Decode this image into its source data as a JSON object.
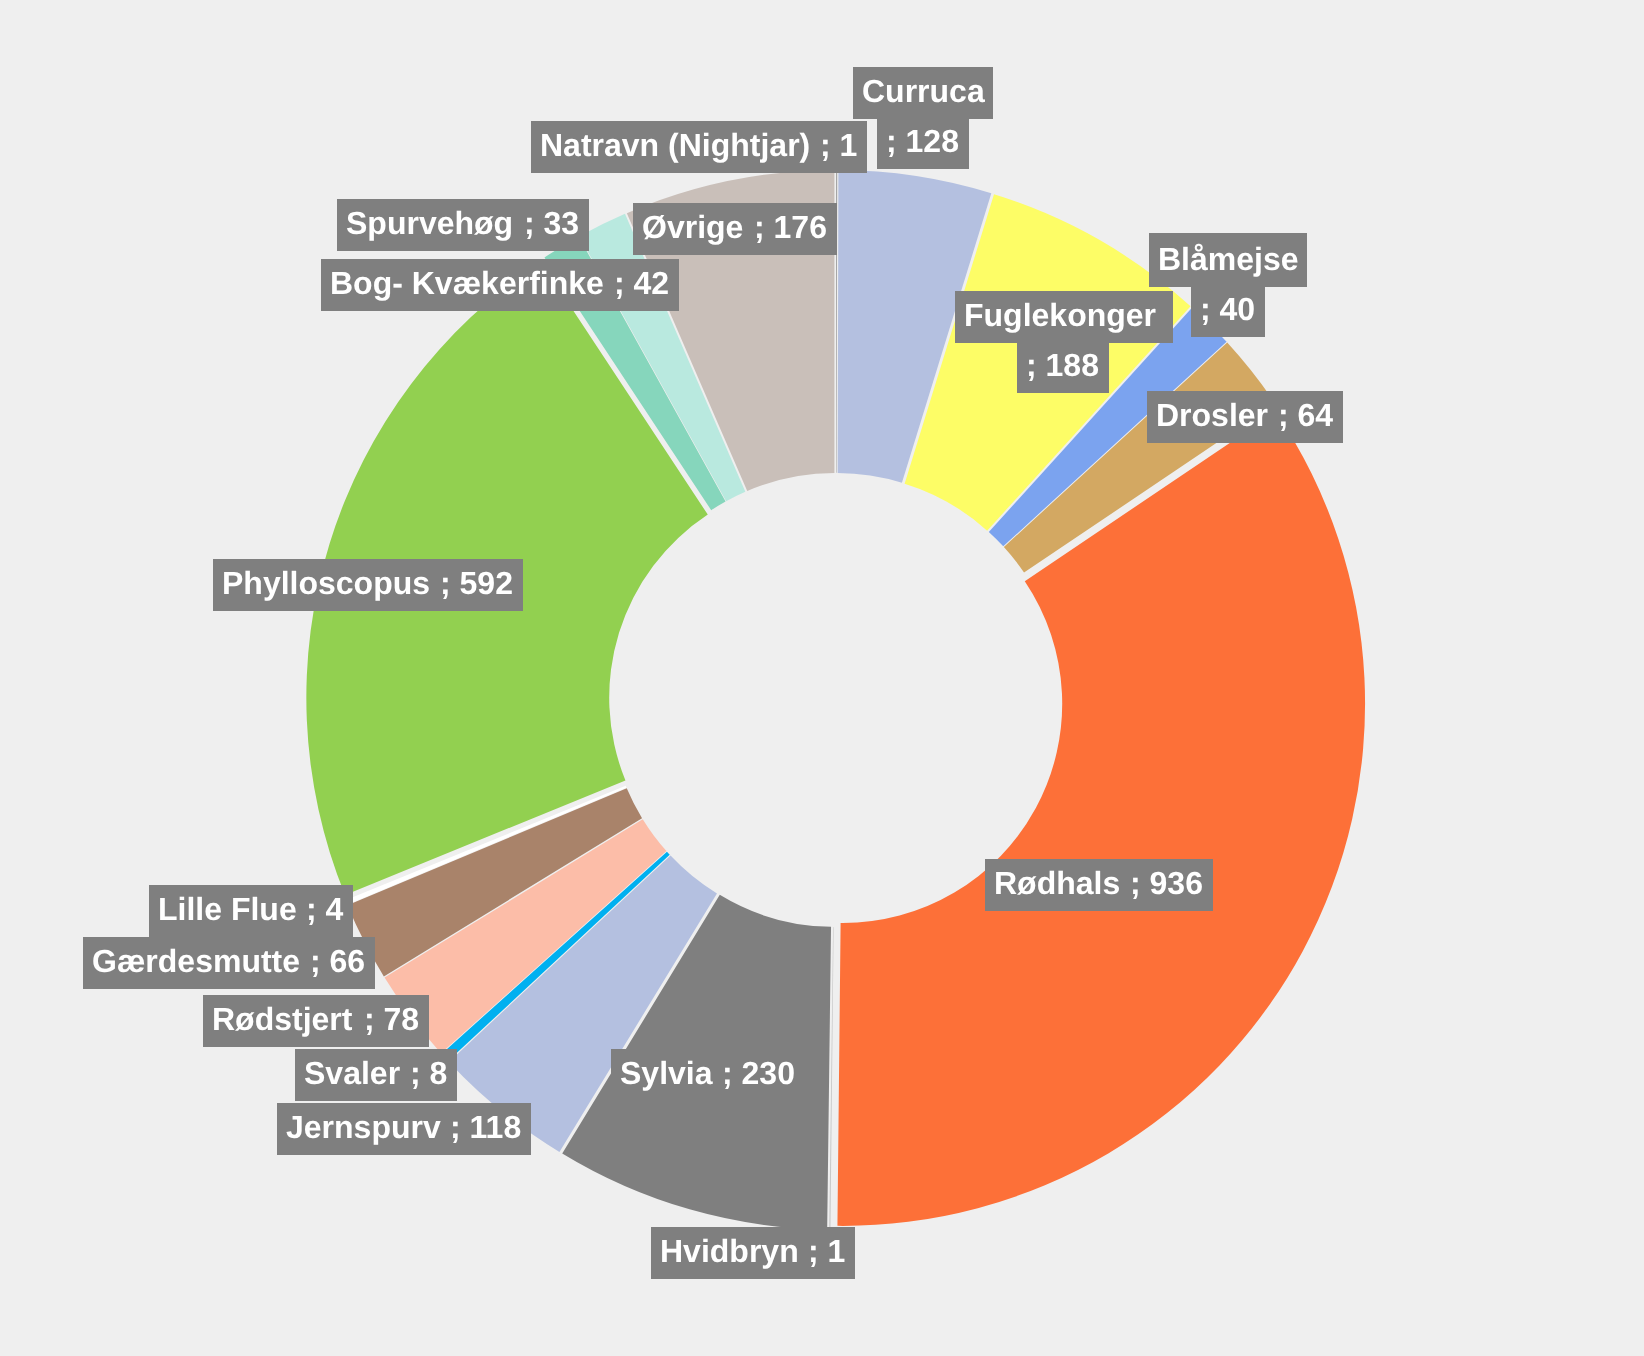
{
  "chart_data": {
    "type": "donut",
    "categories": [
      "Natravn (Nightjar)",
      "Curruca",
      "Fuglekonger ",
      "Blåmejse",
      "Drosler",
      "Rødhals",
      "Hvidbryn",
      "Sylvia",
      "Jernspurv",
      "Svaler",
      "Rødstjert",
      "Gærdesmutte",
      "Lille Flue",
      "Phylloscopus",
      "Spurvehøg",
      "Bog- Kvækerfinke",
      "Øvrige"
    ],
    "values": [
      1,
      128,
      188,
      40,
      64,
      936,
      1,
      230,
      118,
      8,
      78,
      66,
      4,
      592,
      33,
      42,
      176
    ],
    "value_labels": [
      "; 1",
      "; 128",
      "; 188",
      "; 40",
      "; 64",
      "; 936",
      "; 1",
      "; 230",
      "; 118",
      "; 8",
      "; 78",
      "; 66",
      "; 4",
      "; 592",
      "; 33",
      "; 42",
      "; 176"
    ],
    "colors": [
      "#a5a5a5",
      "#b4c0e0",
      "#fdfd66",
      "#7ba3ef",
      "#d3a862",
      "#fd7038",
      "#c8c8c8",
      "#7f7f7f",
      "#b4c0e0",
      "#00b0f0",
      "#fcbda8",
      "#a9836a",
      "#ffffff",
      "#92d050",
      "#86d6bc",
      "#b9e9df",
      "#c9bfb9"
    ],
    "legend": false
  }
}
